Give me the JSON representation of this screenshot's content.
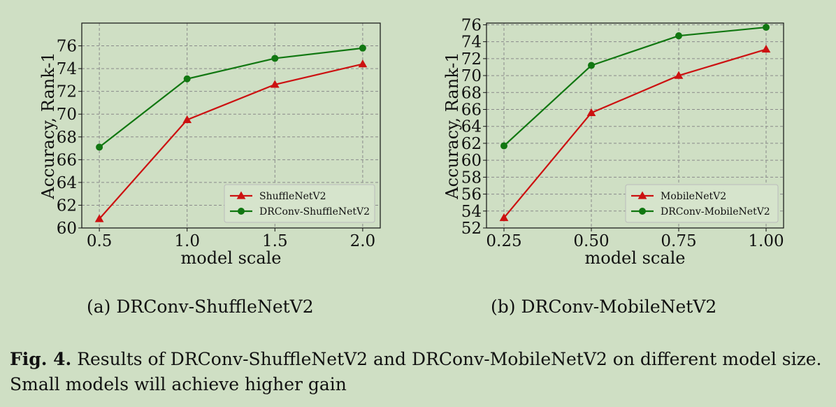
{
  "chart_data": [
    {
      "type": "line",
      "xlabel": "model scale",
      "ylabel": "Accuracy, Rank-1",
      "x": [
        0.5,
        1.0,
        1.5,
        2.0
      ],
      "x_tick_labels": [
        "0.5",
        "1.0",
        "1.5",
        "2.0"
      ],
      "xlim": [
        0.4,
        2.1
      ],
      "ylim": [
        60,
        78
      ],
      "y_ticks": [
        60,
        62,
        64,
        66,
        68,
        70,
        72,
        74,
        76
      ],
      "grid": true,
      "legend_position": "lower-right",
      "series": [
        {
          "name": "ShuffleNetV2",
          "values": [
            60.8,
            69.5,
            72.6,
            74.4
          ],
          "color": "#cc1111",
          "marker": "triangle"
        },
        {
          "name": "DRConv-ShuffleNetV2",
          "values": [
            67.1,
            73.1,
            74.9,
            75.8
          ],
          "color": "#117711",
          "marker": "circle"
        }
      ]
    },
    {
      "type": "line",
      "xlabel": "model scale",
      "ylabel": "Accuracy, Rank-1",
      "x": [
        0.25,
        0.5,
        0.75,
        1.0
      ],
      "x_tick_labels": [
        "0.25",
        "0.50",
        "0.75",
        "1.00"
      ],
      "xlim": [
        0.2,
        1.05
      ],
      "ylim": [
        52,
        76.2
      ],
      "y_ticks": [
        52,
        54,
        56,
        58,
        60,
        62,
        64,
        66,
        68,
        70,
        72,
        74,
        76
      ],
      "grid": true,
      "legend_position": "lower-right",
      "series": [
        {
          "name": "MobileNetV2",
          "values": [
            53.2,
            65.6,
            70.0,
            73.1
          ],
          "color": "#cc1111",
          "marker": "triangle"
        },
        {
          "name": "DRConv-MobileNetV2",
          "values": [
            61.7,
            71.2,
            74.7,
            75.7
          ],
          "color": "#117711",
          "marker": "circle"
        }
      ]
    }
  ],
  "subcaptions": {
    "a": "(a) DRConv-ShuffleNetV2",
    "b": "(b) DRConv-MobileNetV2"
  },
  "caption": {
    "label": "Fig. 4.",
    "text": "Results of DRConv-ShuffleNetV2 and DRConv-MobileNetV2 on different model size. Small models will achieve higher gain"
  }
}
